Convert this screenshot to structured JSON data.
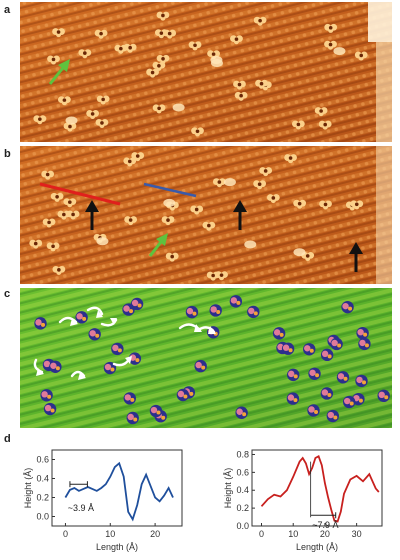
{
  "panels": {
    "a": {
      "label": "a"
    },
    "b": {
      "label": "b"
    },
    "c": {
      "label": "c"
    },
    "d": {
      "label": "d"
    }
  },
  "colors": {
    "stm_base": "#c8621e",
    "stm_bright": "#f8c27a",
    "stm_dark": "#7a2e08",
    "map_green": "#5fb62a",
    "map_blue": "#2c2f8c",
    "map_pink": "#e07a9a",
    "arrow_green": "#5ec23e",
    "arrow_black": "#111111",
    "arrow_white": "#ffffff",
    "line_red": "#e0201c",
    "line_blue": "#3b5aa8",
    "curve_blue": "#1f4f9c",
    "curve_red": "#c8201e"
  },
  "chart_data": [
    {
      "type": "line",
      "xlabel": "Length (Å)",
      "ylabel": "Height (Å)",
      "xlim": [
        -3,
        26
      ],
      "ylim": [
        -0.1,
        0.7
      ],
      "xticks": [
        0,
        10,
        20
      ],
      "yticks": [
        0.0,
        0.2,
        0.4,
        0.6
      ],
      "annotation": "~3.9 Å",
      "series": [
        {
          "x": [
            0,
            1,
            2,
            3,
            4,
            5,
            6,
            7,
            8,
            9,
            10,
            11,
            12,
            13,
            14,
            15,
            16,
            17,
            18,
            19,
            20,
            21,
            22,
            23,
            24
          ],
          "y": [
            0.2,
            0.28,
            0.3,
            0.27,
            0.29,
            0.31,
            0.29,
            0.27,
            0.3,
            0.34,
            0.42,
            0.52,
            0.56,
            0.42,
            0.05,
            -0.03,
            0.12,
            0.34,
            0.44,
            0.32,
            0.2,
            0.16,
            0.22,
            0.3,
            0.2
          ]
        }
      ]
    },
    {
      "type": "line",
      "xlabel": "Length (Å)",
      "ylabel": "Height (Å)",
      "xlim": [
        -3,
        38
      ],
      "ylim": [
        0,
        0.85
      ],
      "xticks": [
        0,
        10,
        20,
        30
      ],
      "yticks": [
        0.0,
        0.2,
        0.4,
        0.6,
        0.8
      ],
      "annotation": "~7.9 Å",
      "series": [
        {
          "x": [
            0,
            2,
            4,
            6,
            8,
            10,
            12,
            13,
            14,
            15,
            16,
            17,
            18,
            19,
            20,
            21,
            22,
            23,
            24,
            25,
            26,
            28,
            30,
            32,
            34,
            36,
            37
          ],
          "y": [
            0.22,
            0.3,
            0.35,
            0.33,
            0.4,
            0.55,
            0.72,
            0.76,
            0.7,
            0.58,
            0.65,
            0.76,
            0.78,
            0.68,
            0.48,
            0.32,
            0.18,
            0.06,
            0.05,
            0.16,
            0.36,
            0.52,
            0.56,
            0.5,
            0.58,
            0.42,
            0.38
          ]
        }
      ]
    }
  ]
}
